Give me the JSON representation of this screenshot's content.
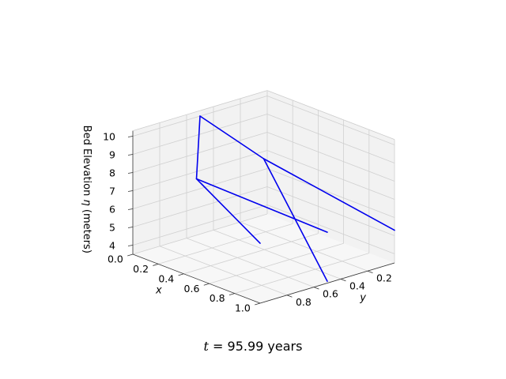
{
  "chart_data": {
    "type": "line",
    "projection": "3d",
    "caption": {
      "var": "t",
      "text": "= 95.99 years"
    },
    "axes": {
      "x": {
        "label": "x",
        "ticks": [
          "0.0",
          "0.2",
          "0.4",
          "0.6",
          "0.8",
          "1.0"
        ],
        "range": [
          0,
          1
        ]
      },
      "y": {
        "label": "y",
        "ticks": [
          "0.2",
          "0.4",
          "0.6",
          "0.8"
        ],
        "range": [
          0,
          1
        ],
        "inverted": true
      },
      "z": {
        "label_prefix": "Bed Elevation ",
        "label_var": "η",
        "label_suffix": " (meters)",
        "ticks": [
          "4",
          "5",
          "6",
          "7",
          "8",
          "9",
          "10"
        ],
        "range": [
          3.5,
          10.3
        ]
      }
    },
    "grid": true,
    "colors": {
      "line": "#0000ee",
      "pane": "#f2f2f2",
      "grid": "#d0d0d0"
    },
    "series": [
      {
        "segment": "trunk-a",
        "points": [
          [
            0.0,
            0.5,
            10.0
          ],
          [
            0.5,
            0.5,
            9.0
          ],
          [
            1.0,
            0.5,
            3.6
          ]
        ]
      },
      {
        "segment": "trunk-b",
        "points": [
          [
            0.0,
            0.5,
            10.0
          ],
          [
            0.5,
            0.0,
            9.0
          ],
          [
            1.0,
            0.0,
            6.8
          ]
        ]
      },
      {
        "segment": "branch-a",
        "points": [
          [
            0.5,
            0.5,
            9.0
          ],
          [
            1.0,
            1.0,
            5.3
          ]
        ]
      },
      {
        "segment": "branch-b",
        "points": [
          [
            0.5,
            0.0,
            9.0
          ],
          [
            1.0,
            0.5,
            6.3
          ]
        ]
      }
    ]
  }
}
